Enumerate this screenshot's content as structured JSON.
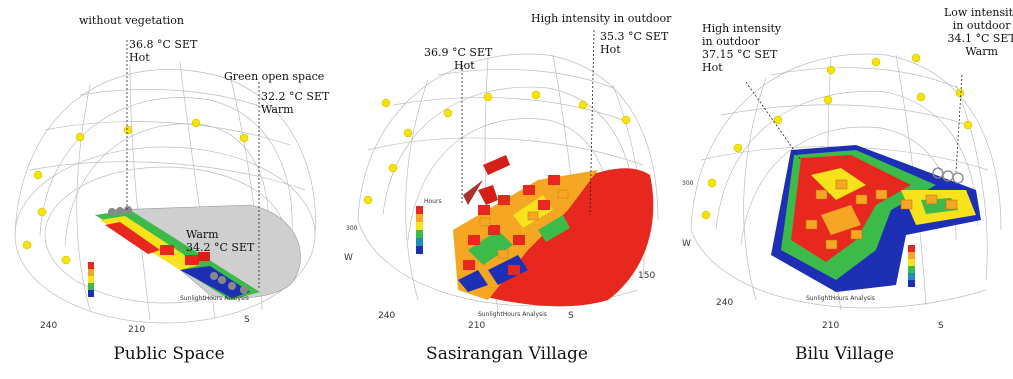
{
  "panels": [
    {
      "caption": "Public Space",
      "annotations": [
        {
          "line1": "without vegetation"
        },
        {
          "line1": "36.8 ",
          "unit": "°C SET",
          "line2": "Hot"
        },
        {
          "line1": "Green open space"
        },
        {
          "line1": "32.2 ",
          "unit": "°C SET",
          "line2": "Warm"
        },
        {
          "line1": "Warm",
          "line2": "34.2 °C SET"
        }
      ],
      "ticks": [
        "240",
        "210",
        "S"
      ],
      "axis_label": "SunlightHours Analysis"
    },
    {
      "caption": "Sasirangan Village",
      "annotations": [
        {
          "line1": "High intensity in outdoor"
        },
        {
          "line1": "36.9 ",
          "unit": "°C SET",
          "line2": "Hot"
        },
        {
          "line1": "35.3 ",
          "unit": "°C SET",
          "line2": "Hot"
        }
      ],
      "ticks": [
        "240",
        "210",
        "S",
        "150",
        "300",
        "W"
      ],
      "axis_label": "SunlightHours Analysis",
      "legend_title": "Hours"
    },
    {
      "caption": "Bilu Village",
      "annotations": [
        {
          "line1": "High intensity",
          "line2": "in outdoor"
        },
        {
          "line1": "37.15 ",
          "unit": "°C SET",
          "line2": "Hot"
        },
        {
          "line1": "Low intensity",
          "line2": "in outdoor"
        },
        {
          "line1": "34.1 ",
          "unit": "°C SET",
          "line2": "Warm"
        }
      ],
      "ticks": [
        "240",
        "210",
        "S",
        "300",
        "W"
      ],
      "axis_label": "SunlightHours Analysis"
    }
  ],
  "colors": {
    "hot": "#e8281e",
    "warm": "#f5a623",
    "mid": "#f7e21b",
    "cool": "#3cba4a",
    "cold": "#1d2fb5",
    "sun": "#f5e400",
    "dome": "#b9b9b9",
    "ground_grey": "#cfcfcf"
  }
}
